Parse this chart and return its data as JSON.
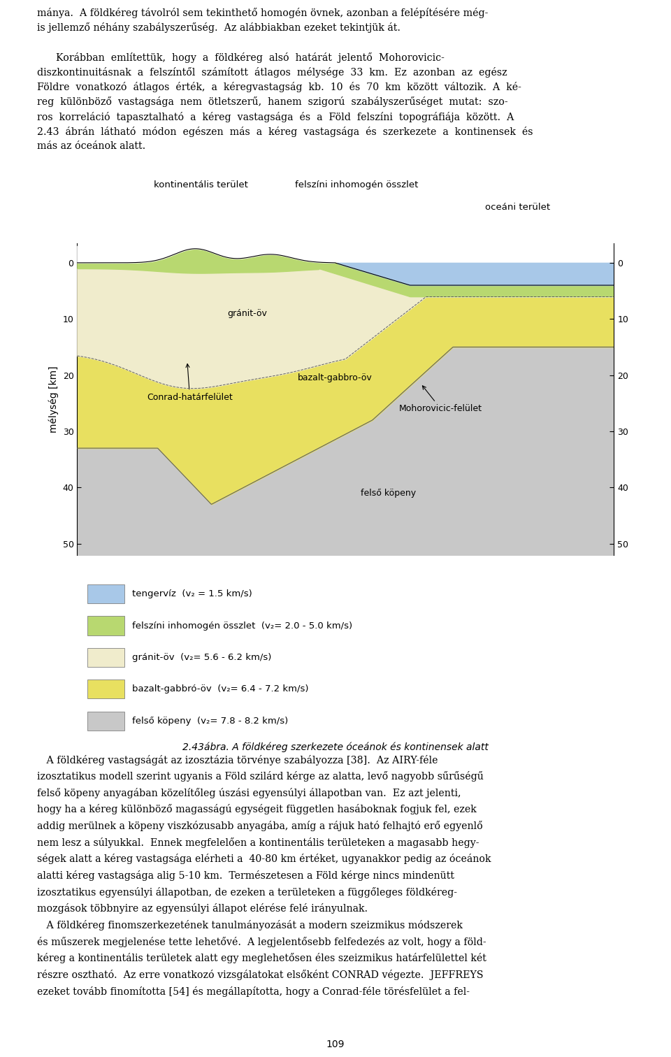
{
  "color_tengerviz": "#a8c8e8",
  "color_felszini": "#b8d870",
  "color_granit": "#f0eccc",
  "color_bazalt": "#e8e060",
  "color_kopeny": "#c8c8c8",
  "label_tengerviz": "tengervíz  (v₂ = 1.5 km/s)",
  "label_felszini": "felszíni inhomogén összlet  (v₂= 2.0 - 5.0 km/s)",
  "label_granit": "gránit-öv  (v₂= 5.6 - 6.2 km/s)",
  "label_bazalt": "bazalt-gabbró-öv  (v₂= 6.4 - 7.2 km/s)",
  "label_kopeny": "felső köpeny  (v₂= 7.8 - 8.2 km/s)",
  "ann_kontinentalis": "kontinentális terület",
  "ann_felszini_lbl": "felszíni inhomogén összlet",
  "ann_oceani": "oceáni terület",
  "ann_granit": "gránit-öv",
  "ann_bazalt_gabro": "bazalt-gabbro-öv",
  "ann_conrad": "Conrad-határfelület",
  "ann_mohorovicic": "Mohorovicic-felület",
  "ann_felso_kopeny": "felső köpeny",
  "ylabel": "mélység [km]",
  "page_number": "109",
  "caption_italic": "2.43ábra.",
  "caption_rest": " A földkéreg szerkezete óceánok és kontinensek alatt"
}
